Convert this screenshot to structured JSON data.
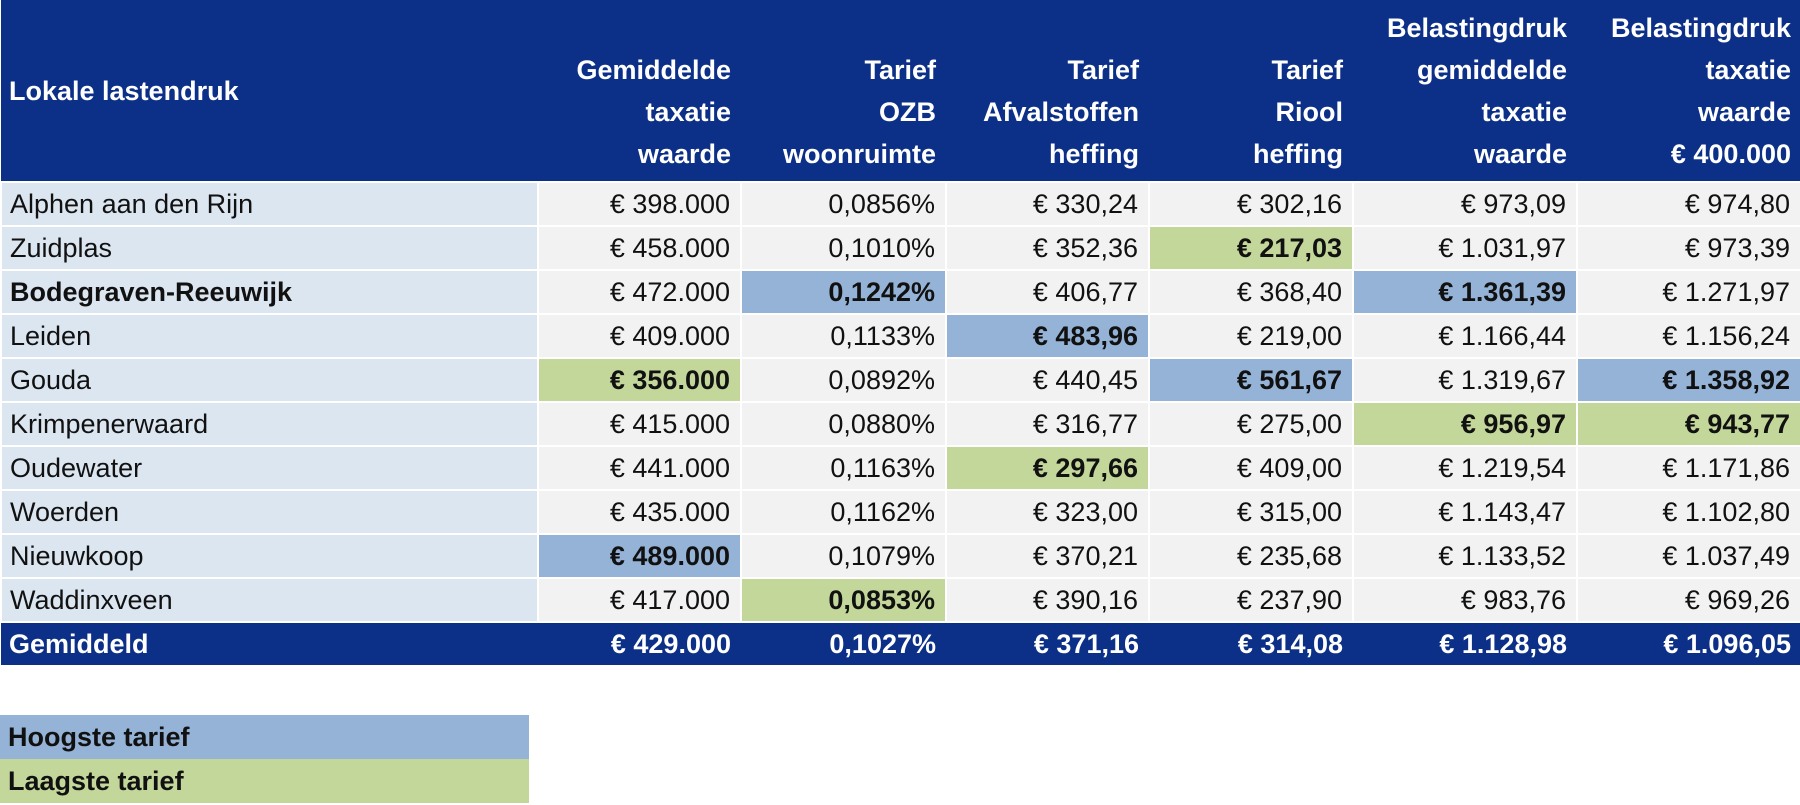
{
  "table": {
    "header": [
      [
        "Lokale lastendruk"
      ],
      [
        "Gemiddelde",
        "taxatie",
        "waarde"
      ],
      [
        "Tarief",
        "OZB",
        "woonruimte"
      ],
      [
        "Tarief",
        "Afvalstoffen",
        "heffing"
      ],
      [
        "Tarief",
        "Riool",
        "heffing"
      ],
      [
        "Belastingdruk",
        "gemiddelde",
        "taxatie",
        "waarde"
      ],
      [
        "Belastingdruk",
        "taxatie",
        "waarde",
        "€ 400.000"
      ]
    ],
    "rows": [
      [
        "Alphen aan den Rijn",
        "€ 398.000",
        "0,0856%",
        "€ 330,24",
        "€ 302,16",
        "€ 973,09",
        "€ 974,80"
      ],
      [
        "Zuidplas",
        "€ 458.000",
        "0,1010%",
        "€ 352,36",
        "€ 217,03",
        "€ 1.031,97",
        "€ 973,39"
      ],
      [
        "Bodegraven-Reeuwijk",
        "€ 472.000",
        "0,1242%",
        "€ 406,77",
        "€ 368,40",
        "€ 1.361,39",
        "€ 1.271,97"
      ],
      [
        "Leiden",
        "€ 409.000",
        "0,1133%",
        "€ 483,96",
        "€ 219,00",
        "€ 1.166,44",
        "€ 1.156,24"
      ],
      [
        "Gouda",
        "€ 356.000",
        "0,0892%",
        "€ 440,45",
        "€ 561,67",
        "€ 1.319,67",
        "€ 1.358,92"
      ],
      [
        "Krimpenerwaard",
        "€ 415.000",
        "0,0880%",
        "€ 316,77",
        "€ 275,00",
        "€ 956,97",
        "€ 943,77"
      ],
      [
        "Oudewater",
        "€ 441.000",
        "0,1163%",
        "€ 297,66",
        "€ 409,00",
        "€ 1.219,54",
        "€ 1.171,86"
      ],
      [
        "Woerden",
        "€ 435.000",
        "0,1162%",
        "€ 323,00",
        "€ 315,00",
        "€ 1.143,47",
        "€ 1.102,80"
      ],
      [
        "Nieuwkoop",
        "€ 489.000",
        "0,1079%",
        "€ 370,21",
        "€ 235,68",
        "€ 1.133,52",
        "€ 1.037,49"
      ],
      [
        "Waddinxveen",
        "€ 417.000",
        "0,0853%",
        "€ 390,16",
        "€ 237,90",
        "€ 983,76",
        "€ 969,26"
      ]
    ],
    "footer": [
      "Gemiddeld",
      "€ 429.000",
      "0,1027%",
      "€ 371,16",
      "€ 314,08",
      "€ 1.128,98",
      "€ 1.096,05"
    ]
  },
  "legend": {
    "highest": "Hoogste tarief",
    "lowest": "Laagste tarief"
  }
}
